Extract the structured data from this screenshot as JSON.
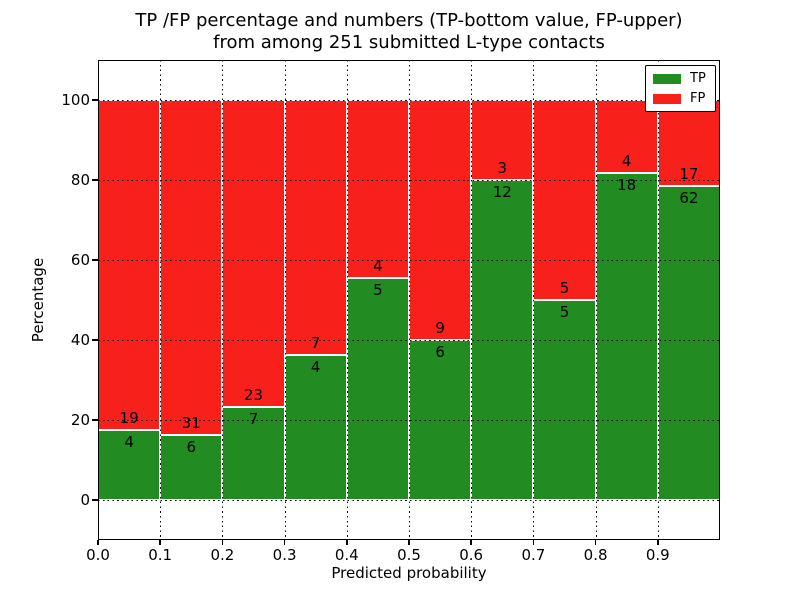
{
  "figure": {
    "title_line1": "TP /FP percentage and numbers (TP-bottom value, FP-upper)",
    "title_line2": "from among 251 submitted L-type contacts"
  },
  "chart_data": {
    "type": "bar",
    "stacked": true,
    "normalized": "each bar sums to 100 percent of its bin total",
    "title": "TP /FP percentage and numbers (TP-bottom value, FP-upper) from among 251 submitted L-type contacts",
    "xlabel": "Predicted probability",
    "ylabel": "Percentage",
    "total_contacts": 251,
    "bin_edges": [
      0.0,
      0.1,
      0.2,
      0.3,
      0.4,
      0.5,
      0.6,
      0.7,
      0.8,
      0.9,
      1.0
    ],
    "categories": [
      "0.0-0.1",
      "0.1-0.2",
      "0.2-0.3",
      "0.3-0.4",
      "0.4-0.5",
      "0.5-0.6",
      "0.6-0.7",
      "0.7-0.8",
      "0.8-0.9",
      "0.9-1.0"
    ],
    "series": [
      {
        "name": "TP",
        "color": "#228b22",
        "counts": [
          4,
          6,
          7,
          4,
          5,
          6,
          12,
          5,
          18,
          62
        ],
        "percent": [
          17.39,
          16.22,
          23.33,
          36.36,
          55.56,
          40.0,
          80.0,
          50.0,
          81.82,
          78.48
        ]
      },
      {
        "name": "FP",
        "color": "#f8201a",
        "counts": [
          19,
          31,
          23,
          7,
          4,
          9,
          3,
          5,
          4,
          17
        ],
        "percent": [
          82.61,
          83.78,
          76.67,
          63.64,
          44.44,
          60.0,
          20.0,
          50.0,
          18.18,
          21.52
        ]
      }
    ],
    "x_tick_labels": [
      "0.0",
      "0.1",
      "0.2",
      "0.3",
      "0.4",
      "0.5",
      "0.6",
      "0.7",
      "0.8",
      "0.9"
    ],
    "y_ticks": [
      0,
      20,
      40,
      60,
      80,
      100
    ],
    "xlim": [
      0.0,
      1.0
    ],
    "ylim": [
      -10,
      110
    ],
    "grid": true,
    "legend": {
      "position": "upper right",
      "items": [
        {
          "label": "TP",
          "color": "#228b22"
        },
        {
          "label": "FP",
          "color": "#f8201a"
        }
      ]
    }
  }
}
